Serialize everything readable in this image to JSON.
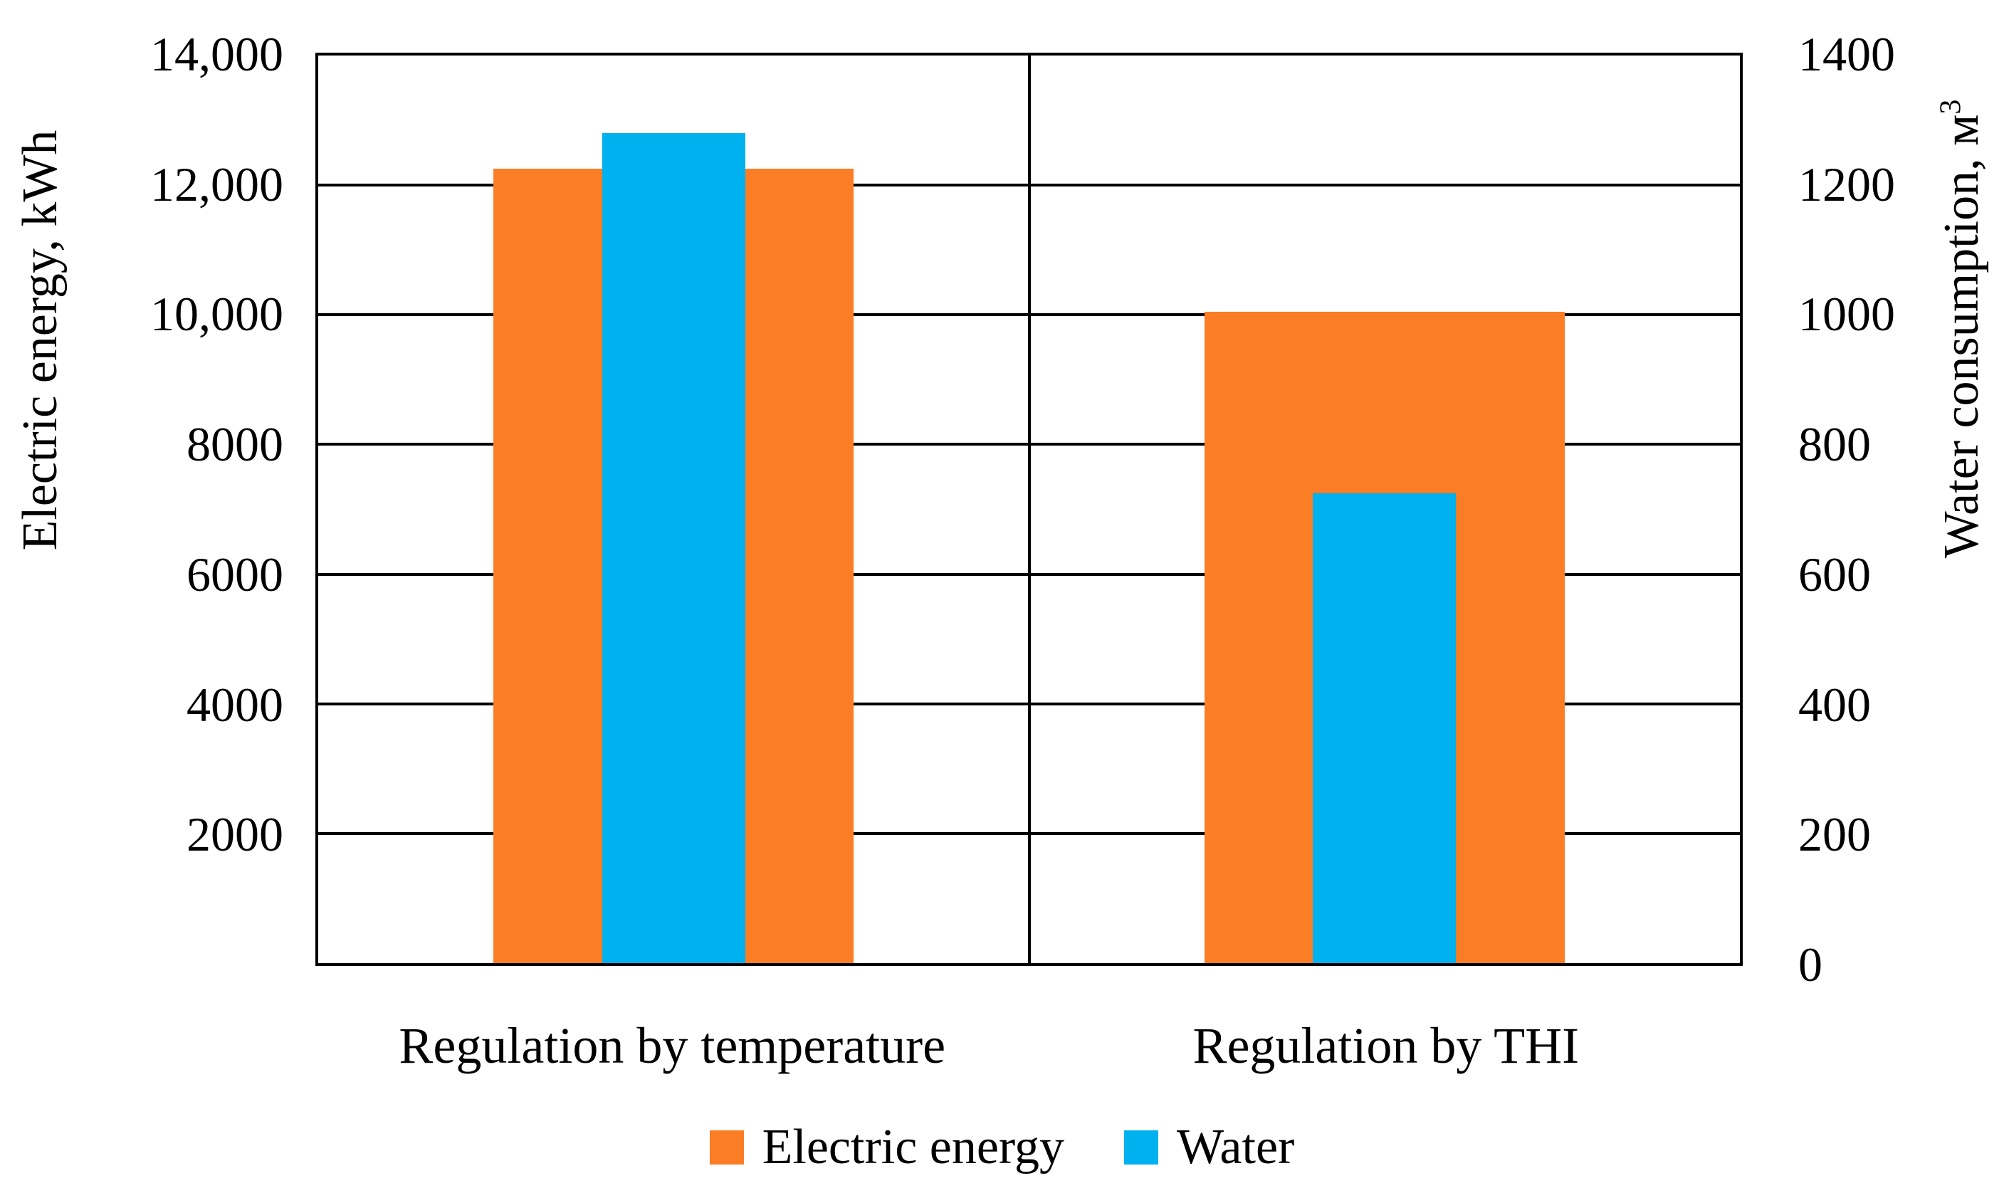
{
  "chart_data": {
    "type": "bar",
    "title": "",
    "categories": [
      "Regulation by temperature",
      "Regulation by THI"
    ],
    "series": [
      {
        "name": "Electric energy",
        "axis": "left",
        "color": "#FB7D25",
        "values": [
          12250,
          10050
        ]
      },
      {
        "name": "Water",
        "axis": "right",
        "color": "#00B1F0",
        "values": [
          1280,
          725
        ]
      }
    ],
    "left_axis": {
      "label": "Electric energy, kWh",
      "min": 0,
      "max": 14000,
      "tick_step": 2000,
      "ticks": [
        {
          "label": "14,000",
          "value": 14000
        },
        {
          "label": "12,000",
          "value": 12000
        },
        {
          "label": "10,000",
          "value": 10000
        },
        {
          "label": "8000",
          "value": 8000
        },
        {
          "label": "6000",
          "value": 6000
        },
        {
          "label": "4000",
          "value": 4000
        },
        {
          "label": "2000",
          "value": 2000
        }
      ]
    },
    "right_axis": {
      "label_main": "Water consumption, м",
      "label_sup": "3",
      "min": 0,
      "max": 1400,
      "tick_step": 200,
      "ticks": [
        {
          "label": "1400",
          "value": 1400
        },
        {
          "label": "1200",
          "value": 1200
        },
        {
          "label": "1000",
          "value": 1000
        },
        {
          "label": "800",
          "value": 800
        },
        {
          "label": "600",
          "value": 600
        },
        {
          "label": "400",
          "value": 400
        },
        {
          "label": "200",
          "value": 200
        },
        {
          "label": "0",
          "value": 0
        }
      ]
    },
    "grid": "horizontal gridlines every 2000 kWh / 200 м³, black",
    "legend_position": "bottom"
  },
  "legend": {
    "items": [
      {
        "label": "Electric energy",
        "color": "#FB7D25"
      },
      {
        "label": "Water",
        "color": "#00B1F0"
      }
    ]
  }
}
